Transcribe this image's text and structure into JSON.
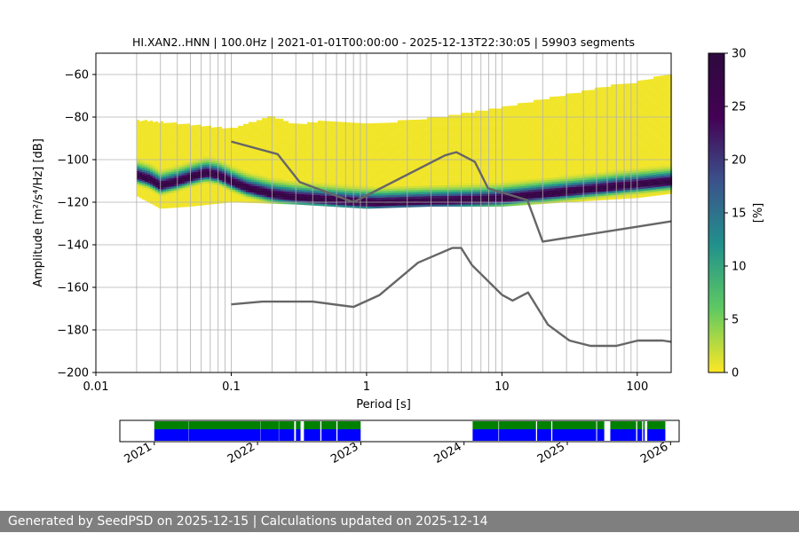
{
  "footer": {
    "text": "Generated by SeedPSD on 2025-12-15 | Calculations updated on 2025-12-14"
  },
  "chart_data": [
    {
      "type": "heatmap",
      "title": "HI.XAN2..HNN | 100.0Hz | 2021-01-01T00:00:00 - 2025-12-13T22:30:05 | 59903 segments",
      "xlabel": "Period [s]",
      "ylabel": "Amplitude [m²/s⁴/Hz] [dB]",
      "x_scale": "log",
      "xlim": [
        0.01,
        178
      ],
      "ylim": [
        -200,
        -50
      ],
      "grid": true,
      "x_ticks": [
        {
          "value": 0.01,
          "label": "0.01"
        },
        {
          "value": 0.1,
          "label": "0.1"
        },
        {
          "value": 1,
          "label": "1"
        },
        {
          "value": 10,
          "label": "10"
        },
        {
          "value": 100,
          "label": "100"
        }
      ],
      "y_ticks": [
        {
          "value": -60,
          "label": "−60"
        },
        {
          "value": -80,
          "label": "−80"
        },
        {
          "value": -100,
          "label": "−100"
        },
        {
          "value": -120,
          "label": "−120"
        },
        {
          "value": -140,
          "label": "−140"
        },
        {
          "value": -160,
          "label": "−160"
        },
        {
          "value": -180,
          "label": "−180"
        },
        {
          "value": -200,
          "label": "−200"
        }
      ],
      "colorbar": {
        "label": "[%]",
        "range": [
          0,
          30
        ],
        "ticks": [
          {
            "value": 0,
            "label": "0"
          },
          {
            "value": 5,
            "label": "5"
          },
          {
            "value": 10,
            "label": "10"
          },
          {
            "value": 15,
            "label": "15"
          },
          {
            "value": 20,
            "label": "20"
          },
          {
            "value": 25,
            "label": "25"
          },
          {
            "value": 30,
            "label": "30"
          }
        ],
        "colormap": "viridis_r",
        "colors": [
          "#fde725",
          "#5ec962",
          "#21918c",
          "#3b528b",
          "#440154",
          "#2d0a3e"
        ]
      },
      "histogram": {
        "mode_curve": [
          [
            0.02,
            -108
          ],
          [
            0.025,
            -110
          ],
          [
            0.03,
            -113
          ],
          [
            0.04,
            -111
          ],
          [
            0.05,
            -109
          ],
          [
            0.065,
            -107
          ],
          [
            0.08,
            -108
          ],
          [
            0.1,
            -111
          ],
          [
            0.13,
            -114
          ],
          [
            0.2,
            -117
          ],
          [
            0.3,
            -118.5
          ],
          [
            0.5,
            -119.5
          ],
          [
            0.8,
            -120.5
          ],
          [
            1.2,
            -121
          ],
          [
            2,
            -120.5
          ],
          [
            4,
            -120
          ],
          [
            7,
            -119.5
          ],
          [
            10,
            -119
          ],
          [
            20,
            -117
          ],
          [
            40,
            -115
          ],
          [
            80,
            -113
          ],
          [
            178,
            -111
          ]
        ],
        "upper_envelope": [
          [
            0.02,
            -82
          ],
          [
            0.05,
            -84
          ],
          [
            0.1,
            -86
          ],
          [
            0.2,
            -80
          ],
          [
            0.3,
            -84
          ],
          [
            0.5,
            -82
          ],
          [
            1,
            -84
          ],
          [
            2,
            -82
          ],
          [
            4,
            -80
          ],
          [
            10,
            -76
          ],
          [
            30,
            -70
          ],
          [
            60,
            -66
          ],
          [
            100,
            -64
          ],
          [
            178,
            -60
          ]
        ],
        "lower_envelope": [
          [
            0.02,
            -117
          ],
          [
            0.03,
            -123
          ],
          [
            0.05,
            -122
          ],
          [
            0.1,
            -120
          ],
          [
            0.3,
            -121
          ],
          [
            1,
            -123
          ],
          [
            3,
            -122
          ],
          [
            10,
            -122
          ],
          [
            30,
            -120
          ],
          [
            100,
            -118
          ],
          [
            178,
            -116
          ]
        ]
      },
      "series": [
        {
          "role": "reference-high",
          "color": "#666666",
          "x": [
            0.1,
            0.22,
            0.32,
            0.8,
            3.8,
            4.6,
            6.3,
            7.9,
            15.4,
            20,
            178
          ],
          "y": [
            -91.5,
            -97.4,
            -110.5,
            -120,
            -98,
            -96.5,
            -101,
            -113.5,
            -119,
            -138.5,
            -129
          ]
        },
        {
          "role": "reference-low",
          "color": "#666666",
          "x": [
            0.1,
            0.17,
            0.4,
            0.8,
            1.24,
            2.4,
            4.3,
            5.0,
            6.0,
            10,
            12,
            15.6,
            21.9,
            31.6,
            45,
            70,
            101,
            154,
            178
          ],
          "y": [
            -168,
            -166.7,
            -166.7,
            -169.2,
            -163.7,
            -148.4,
            -141.5,
            -141.5,
            -149.5,
            -163.5,
            -166.2,
            -162.4,
            -177.6,
            -185,
            -187.5,
            -187.5,
            -185,
            -185,
            -185.6
          ]
        }
      ]
    },
    {
      "type": "timeline",
      "x_ticks": [
        "2021",
        "2022",
        "2023",
        "2024",
        "2025",
        "2026"
      ],
      "range": [
        "2020-09",
        "2026-02"
      ],
      "colors": {
        "data": "#0000ff",
        "processed": "#008000"
      },
      "segments": [
        [
          "2021-01-01",
          "2021-05-01"
        ],
        [
          "2021-05-02",
          "2022-01-12"
        ],
        [
          "2022-01-13",
          "2022-03-15"
        ],
        [
          "2022-03-16",
          "2022-05-09"
        ],
        [
          "2022-05-15",
          "2022-06-01"
        ],
        [
          "2022-06-13",
          "2022-08-10"
        ],
        [
          "2022-08-14",
          "2022-10-06"
        ],
        [
          "2022-10-10",
          "2022-12-31"
        ],
        [
          "2024-02-01",
          "2024-05-01"
        ],
        [
          "2024-05-03",
          "2024-09-12"
        ],
        [
          "2024-09-16",
          "2024-11-05"
        ],
        [
          "2024-11-09",
          "2025-04-12"
        ],
        [
          "2025-04-15",
          "2025-05-10"
        ],
        [
          "2025-06-01",
          "2025-09-01"
        ],
        [
          "2025-09-05",
          "2025-09-22"
        ],
        [
          "2025-09-26",
          "2025-10-01"
        ],
        [
          "2025-10-10",
          "2025-12-13"
        ]
      ]
    }
  ]
}
